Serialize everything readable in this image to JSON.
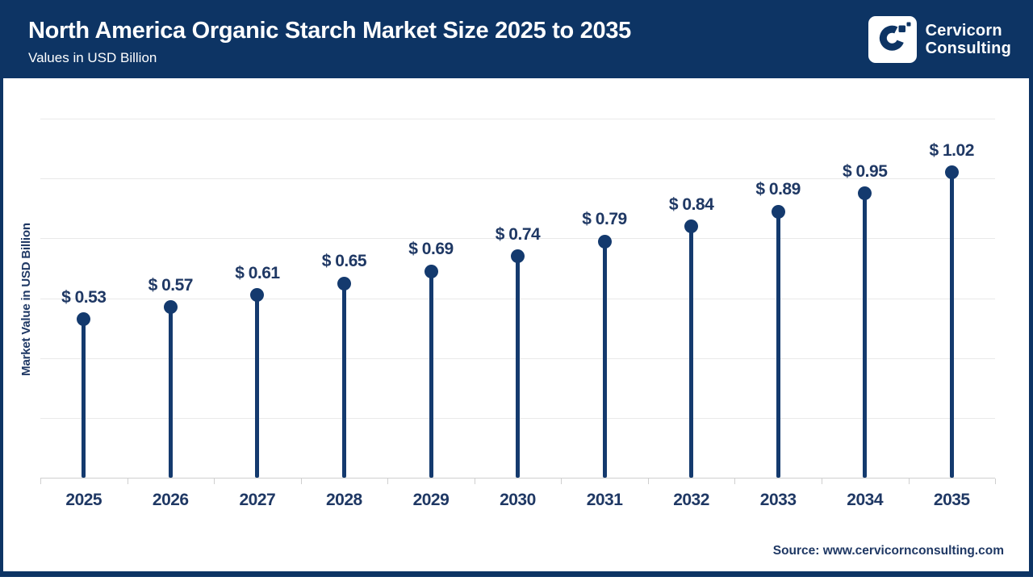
{
  "header": {
    "title": "North America Organic Starch Market Size 2025 to 2035",
    "subtitle": "Values in USD Billion",
    "brand": {
      "icon": "cervicorn-c-logo",
      "name_line1": "Cervicorn",
      "name_line2": "Consulting"
    }
  },
  "chart_data": {
    "type": "lollipop",
    "title": "North America Organic Starch Market Size 2025 to 2035",
    "categories": [
      "2025",
      "2026",
      "2027",
      "2028",
      "2029",
      "2030",
      "2031",
      "2032",
      "2033",
      "2034",
      "2035"
    ],
    "values": [
      0.53,
      0.57,
      0.61,
      0.65,
      0.69,
      0.74,
      0.79,
      0.84,
      0.89,
      0.95,
      1.02
    ],
    "value_labels": [
      "$ 0.53",
      "$ 0.57",
      "$ 0.61",
      "$ 0.65",
      "$ 0.69",
      "$ 0.74",
      "$ 0.79",
      "$ 0.84",
      "$ 0.89",
      "$ 0.95",
      "$ 1.02"
    ],
    "xlabel": "",
    "ylabel": "Market Value in USD Billion",
    "ylim": [
      0,
      1.2
    ],
    "gridline_step": 0.2,
    "grid": true,
    "y_tick_labels_shown": false,
    "legend_position": "none"
  },
  "footer": {
    "source": "Source: www.cervicornconsulting.com"
  },
  "colors": {
    "header_bg": "#0d3464",
    "stem": "#143a6e",
    "text_navy": "#1f3864",
    "gridline": "#e9e9e9",
    "axis": "#cfcfcf",
    "white": "#ffffff"
  }
}
